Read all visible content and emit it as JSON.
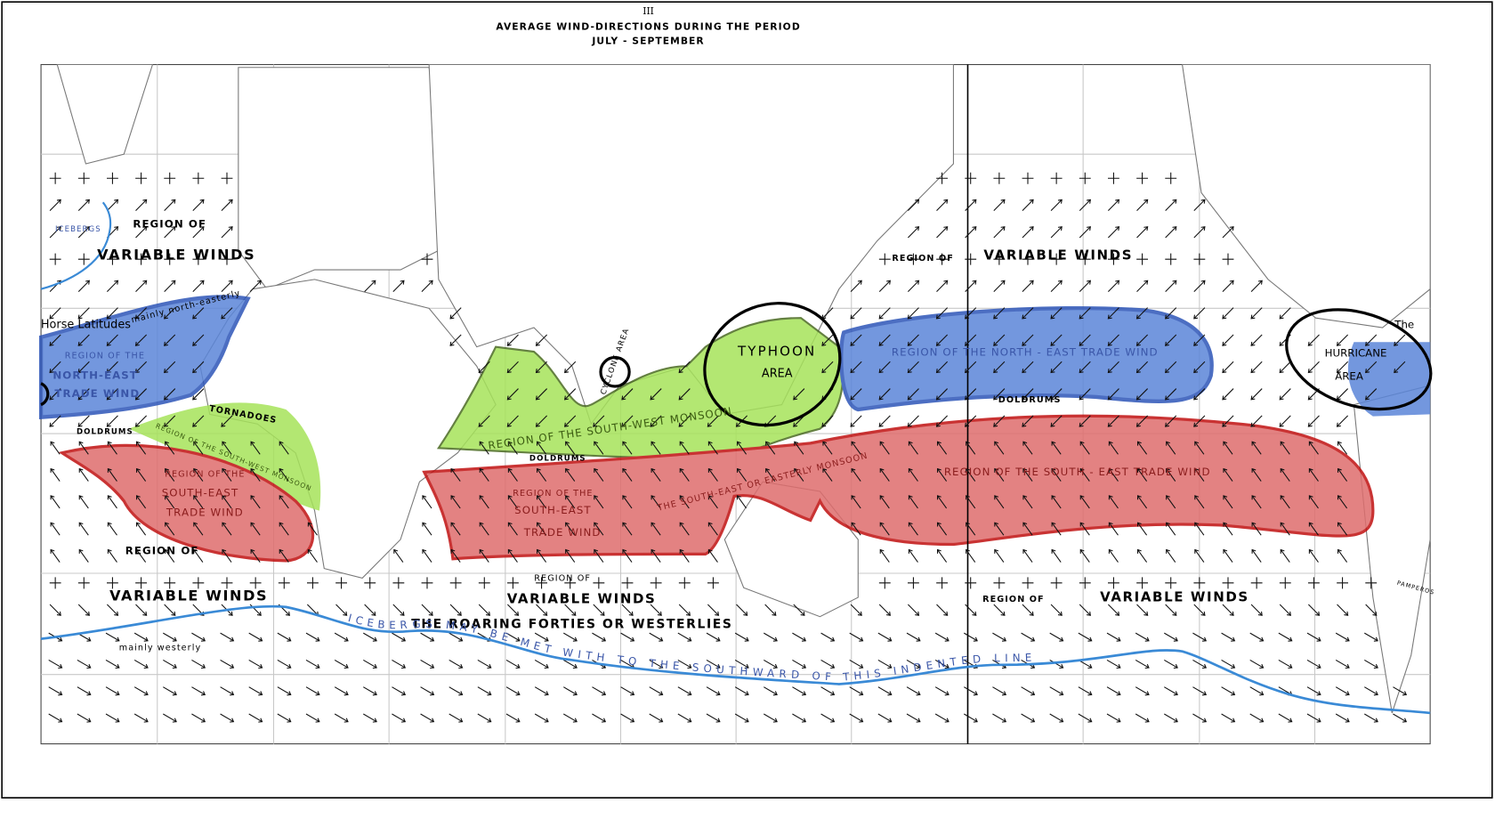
{
  "header": {
    "numeral": "III",
    "title": "AVERAGE WIND-DIRECTIONS DURING THE PERIOD",
    "subtitle": "JULY - SEPTEMBER"
  },
  "labels": [
    "REGION OF",
    "VARIABLE WINDS",
    "Horse Latitudes",
    "mainly north-easterly",
    "REGION OF THE",
    "NORTH-EAST",
    "TRADE WIND",
    "TORNADOES",
    "DOLDRUMS",
    "REGION OF THE SOUTH-WEST MONSOON",
    "REGION OF THE",
    "SOUTH-EAST",
    "TRADE WIND",
    "REGION OF",
    "VARIABLE WINDS",
    "mainly westerly",
    "ICEBERGS",
    "CYCLONE AREA",
    "REGION OF THE SOUTH-WEST MONSOON",
    "DOLDRUMS",
    "TYPHOON",
    "AREA",
    "REGION OF THE",
    "SOUTH-EAST",
    "TRADE WIND",
    "THE SOUTH-EAST OR EASTERLY MONSOON",
    "REGION OF THE SOUTH - EAST TRADE WIND",
    "REGION OF",
    "VARIABLE WINDS",
    "REGION OF THE NORTH - EAST TRADE WIND",
    "DOLDRUMS",
    "HURRICANE",
    "AREA",
    "REGION OF",
    "VARIABLE WINDS",
    "THE ROARING FORTIES OR WESTERLIES",
    "REGION OF",
    "VARIABLE WINDS",
    "ICEBERGS MAY BE MET WITH TO THE SOUTHWARD OF THIS INDENTED LINE",
    "PAMPEROS",
    "The"
  ]
}
